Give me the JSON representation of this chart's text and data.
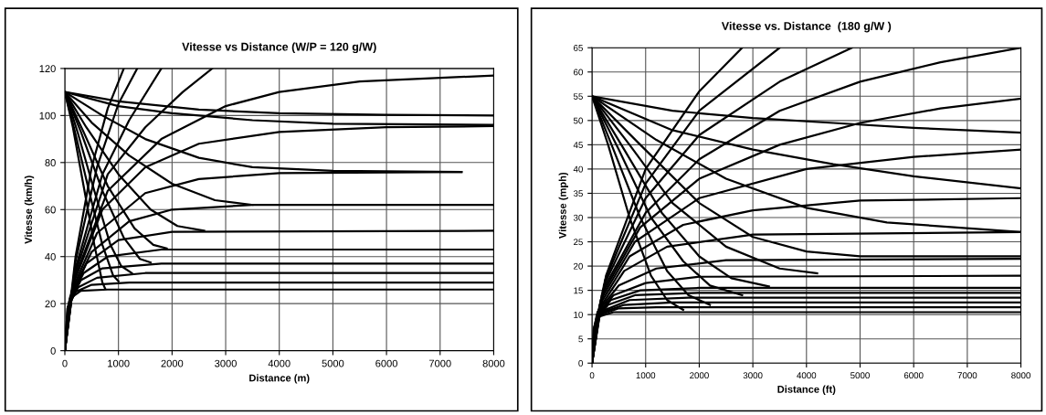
{
  "chart_data": [
    {
      "type": "line",
      "title": "Vitesse vs Distance (W/P = 120 g/W)",
      "xlabel": "Distance (m)",
      "ylabel": "Vitesse (km/h)",
      "xlim": [
        0,
        8000
      ],
      "ylim": [
        0,
        120
      ],
      "xticks": [
        0,
        1000,
        2000,
        3000,
        4000,
        5000,
        6000,
        7000,
        8000
      ],
      "yticks": [
        0,
        20,
        40,
        60,
        80,
        100,
        120
      ],
      "grid": true,
      "line_style": "solid",
      "marker": "none",
      "series": [
        {
          "color": "#000000",
          "x": [
            0,
            50,
            150,
            300,
            800,
            8000
          ],
          "values": [
            0,
            18,
            23,
            25.5,
            26,
            26
          ]
        },
        {
          "color": "#000000",
          "x": [
            0,
            50,
            200,
            500,
            1200,
            8000
          ],
          "values": [
            0,
            18,
            25,
            28,
            29,
            29
          ]
        },
        {
          "color": "#000000",
          "x": [
            0,
            60,
            250,
            600,
            1500,
            8000
          ],
          "values": [
            0,
            19,
            27,
            31,
            33,
            33
          ]
        },
        {
          "color": "#000000",
          "x": [
            0,
            70,
            300,
            700,
            1800,
            8000
          ],
          "values": [
            0,
            20,
            30,
            35,
            37,
            37
          ]
        },
        {
          "color": "#000000",
          "x": [
            0,
            80,
            350,
            800,
            1800,
            8000
          ],
          "values": [
            0,
            21,
            33,
            40,
            43,
            43
          ]
        },
        {
          "color": "#000000",
          "x": [
            0,
            90,
            400,
            1000,
            2000,
            8000
          ],
          "values": [
            0,
            22,
            37,
            47,
            50.5,
            51
          ]
        },
        {
          "color": "#000000",
          "x": [
            0,
            100,
            500,
            1200,
            2000,
            3500,
            8000
          ],
          "values": [
            0,
            23,
            42,
            55,
            60,
            62,
            62
          ]
        },
        {
          "color": "#000000",
          "x": [
            0,
            120,
            600,
            1500,
            2500,
            4000,
            7400
          ],
          "values": [
            0,
            25,
            50,
            67,
            73,
            75.5,
            76
          ]
        },
        {
          "color": "#000000",
          "x": [
            0,
            150,
            700,
            1500,
            2500,
            4000,
            6000,
            8000
          ],
          "values": [
            0,
            28,
            60,
            78,
            88,
            93,
            95,
            95.5
          ]
        },
        {
          "color": "#000000",
          "x": [
            0,
            170,
            800,
            1800,
            3000,
            4000,
            5500,
            8000
          ],
          "values": [
            0,
            30,
            68,
            90,
            104,
            110,
            114.5,
            117
          ]
        },
        {
          "color": "#000000",
          "x": [
            0,
            180,
            800,
            1500,
            2200,
            2750
          ],
          "values": [
            0,
            32,
            75,
            95,
            110,
            120
          ]
        },
        {
          "color": "#000000",
          "x": [
            0,
            200,
            700,
            1200,
            1800
          ],
          "values": [
            0,
            35,
            75,
            98,
            120
          ]
        },
        {
          "color": "#000000",
          "x": [
            0,
            200,
            600,
            1000,
            1350
          ],
          "values": [
            0,
            38,
            78,
            105,
            120
          ]
        },
        {
          "color": "#000000",
          "x": [
            0,
            200,
            500,
            800,
            1100
          ],
          "values": [
            0,
            40,
            78,
            103,
            120
          ]
        },
        {
          "color": "#000000",
          "x": [
            0,
            150,
            350,
            550,
            700,
            750
          ],
          "values": [
            110,
            95,
            70,
            45,
            29,
            26.5
          ]
        },
        {
          "color": "#000000",
          "x": [
            0,
            200,
            450,
            700,
            900,
            1000
          ],
          "values": [
            110,
            92,
            68,
            45,
            32,
            29.5
          ]
        },
        {
          "color": "#000000",
          "x": [
            0,
            250,
            550,
            850,
            1050,
            1250
          ],
          "values": [
            110,
            92,
            68,
            45,
            36,
            33
          ]
        },
        {
          "color": "#000000",
          "x": [
            0,
            300,
            700,
            1100,
            1400,
            1600
          ],
          "values": [
            110,
            93,
            68,
            48,
            39,
            37.5
          ]
        },
        {
          "color": "#000000",
          "x": [
            0,
            350,
            800,
            1300,
            1650,
            1900
          ],
          "values": [
            110,
            93,
            70,
            52,
            45,
            43.5
          ]
        },
        {
          "color": "#000000",
          "x": [
            0,
            400,
            1000,
            1600,
            2100,
            2600
          ],
          "values": [
            110,
            95,
            75,
            60,
            53,
            51
          ]
        },
        {
          "color": "#000000",
          "x": [
            0,
            500,
            1200,
            2000,
            2800,
            3500
          ],
          "values": [
            110,
            97,
            83,
            71,
            64,
            62
          ]
        },
        {
          "color": "#000000",
          "x": [
            0,
            700,
            1500,
            2500,
            3500,
            5000,
            7400
          ],
          "values": [
            110,
            100,
            90,
            82,
            78,
            76.5,
            76
          ]
        },
        {
          "color": "#000000",
          "x": [
            0,
            1000,
            2000,
            3500,
            5000,
            8000
          ],
          "values": [
            110,
            104,
            101,
            98,
            96.5,
            96
          ]
        },
        {
          "color": "#000000",
          "x": [
            0,
            1000,
            2500,
            4000,
            6000,
            8000
          ],
          "values": [
            110,
            106,
            102.5,
            101,
            100.3,
            100
          ]
        }
      ]
    },
    {
      "type": "line",
      "title": "Vitesse vs. Distance  (180 g/W )",
      "xlabel": "Distance (ft)",
      "ylabel": "Vitesse (mph)",
      "xlim": [
        0,
        8000
      ],
      "ylim": [
        0,
        65
      ],
      "xticks": [
        0,
        1000,
        2000,
        3000,
        4000,
        5000,
        6000,
        7000,
        8000
      ],
      "yticks": [
        0,
        5,
        10,
        15,
        20,
        25,
        30,
        35,
        40,
        45,
        50,
        55,
        60,
        65
      ],
      "grid": true,
      "line_style": "solid",
      "marker": "none",
      "series": [
        {
          "color": "#000000",
          "x": [
            0,
            30,
            100,
            400,
            8000
          ],
          "values": [
            0,
            7,
            9.5,
            10.5,
            10.5
          ]
        },
        {
          "color": "#000000",
          "x": [
            0,
            40,
            150,
            500,
            1200,
            8000
          ],
          "values": [
            0,
            7.5,
            10,
            11.3,
            11.5,
            11.5
          ]
        },
        {
          "color": "#000000",
          "x": [
            0,
            50,
            200,
            600,
            1500,
            8000
          ],
          "values": [
            0,
            8,
            10.5,
            12,
            12.5,
            12.5
          ]
        },
        {
          "color": "#000000",
          "x": [
            0,
            60,
            250,
            700,
            1800,
            8000
          ],
          "values": [
            0,
            8.5,
            11,
            13,
            13.5,
            13.5
          ]
        },
        {
          "color": "#000000",
          "x": [
            0,
            70,
            300,
            800,
            2000,
            8000
          ],
          "values": [
            0,
            9,
            12,
            14,
            14.5,
            14.5
          ]
        },
        {
          "color": "#000000",
          "x": [
            0,
            80,
            350,
            900,
            2000,
            8000
          ],
          "values": [
            0,
            9.5,
            13,
            15,
            15.5,
            15.5
          ]
        },
        {
          "color": "#000000",
          "x": [
            0,
            90,
            400,
            1000,
            2000,
            8000
          ],
          "values": [
            0,
            10,
            14,
            16.5,
            17.8,
            18
          ]
        },
        {
          "color": "#000000",
          "x": [
            0,
            100,
            500,
            1200,
            2500,
            8000
          ],
          "values": [
            0,
            10.5,
            16,
            19.5,
            21.2,
            21.5
          ]
        },
        {
          "color": "#000000",
          "x": [
            0,
            120,
            600,
            1400,
            3000,
            8000
          ],
          "values": [
            0,
            11,
            19,
            24,
            26.5,
            27
          ]
        },
        {
          "color": "#000000",
          "x": [
            0,
            140,
            700,
            1700,
            3000,
            5000,
            8000
          ],
          "values": [
            0,
            12,
            22,
            28.5,
            31.5,
            33.5,
            34
          ]
        },
        {
          "color": "#000000",
          "x": [
            0,
            160,
            800,
            2000,
            4000,
            6000,
            8000
          ],
          "values": [
            0,
            13,
            25,
            34,
            40,
            42.5,
            44
          ]
        },
        {
          "color": "#000000",
          "x": [
            0,
            180,
            900,
            2000,
            3500,
            5000,
            6500,
            8000
          ],
          "values": [
            0,
            14,
            28,
            38,
            45,
            49.5,
            52.5,
            54.5
          ]
        },
        {
          "color": "#000000",
          "x": [
            0,
            200,
            1000,
            2000,
            3500,
            5000,
            6500,
            8000
          ],
          "values": [
            0,
            15,
            31,
            42,
            52,
            58,
            62,
            65
          ]
        },
        {
          "color": "#000000",
          "x": [
            0,
            220,
            1000,
            2000,
            3500,
            4850
          ],
          "values": [
            0,
            16,
            34,
            47,
            58,
            65
          ]
        },
        {
          "color": "#000000",
          "x": [
            0,
            240,
            1000,
            2000,
            3500
          ],
          "values": [
            0,
            17,
            37,
            52,
            65
          ]
        },
        {
          "color": "#000000",
          "x": [
            0,
            260,
            1000,
            2000,
            2800
          ],
          "values": [
            0,
            18,
            40,
            56,
            65
          ]
        },
        {
          "color": "#000000",
          "x": [
            0,
            300,
            700,
            1100,
            1400,
            1700
          ],
          "values": [
            55,
            45,
            30,
            18,
            13,
            11
          ]
        },
        {
          "color": "#000000",
          "x": [
            0,
            400,
            900,
            1400,
            1800,
            2200
          ],
          "values": [
            55,
            44,
            30,
            19,
            14,
            12
          ]
        },
        {
          "color": "#000000",
          "x": [
            0,
            500,
            1100,
            1700,
            2200,
            2800
          ],
          "values": [
            55,
            44,
            30,
            21,
            16,
            14
          ]
        },
        {
          "color": "#000000",
          "x": [
            0,
            600,
            1300,
            2000,
            2600,
            3300
          ],
          "values": [
            55,
            44,
            31,
            22,
            17.5,
            15.8
          ]
        },
        {
          "color": "#000000",
          "x": [
            0,
            700,
            1500,
            2500,
            3500,
            4200
          ],
          "values": [
            55,
            45,
            33,
            24,
            19.5,
            18.5
          ]
        },
        {
          "color": "#000000",
          "x": [
            0,
            900,
            2000,
            3000,
            4000,
            5000,
            8000
          ],
          "values": [
            55,
            45,
            33,
            26,
            23,
            22,
            22
          ]
        },
        {
          "color": "#000000",
          "x": [
            0,
            1200,
            2500,
            4000,
            5500,
            8000
          ],
          "values": [
            55,
            46,
            38,
            32,
            29,
            27
          ]
        },
        {
          "color": "#000000",
          "x": [
            0,
            1500,
            3000,
            4500,
            6000,
            8000
          ],
          "values": [
            55,
            48,
            44,
            41,
            38.5,
            36
          ]
        },
        {
          "color": "#000000",
          "x": [
            0,
            1500,
            3000,
            4500,
            6000,
            8000
          ],
          "values": [
            55,
            52,
            50.5,
            49.5,
            48.5,
            47.5
          ]
        }
      ]
    }
  ]
}
